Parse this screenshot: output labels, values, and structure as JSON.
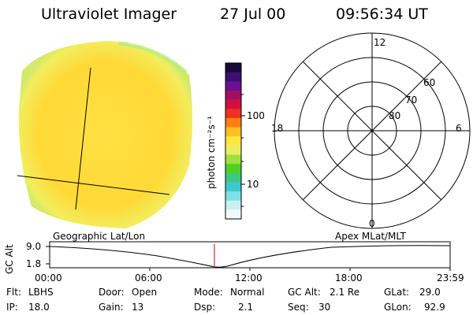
{
  "header": {
    "instrument": "Ultraviolet Imager",
    "date": "27 Jul 00",
    "time": "09:56:34 UT"
  },
  "colorbar": {
    "unit_label": "photon cm⁻²s⁻¹",
    "tick_100": "100",
    "tick_10": "10",
    "colors_top_to_bottom": [
      "#1a0a3a",
      "#3a1070",
      "#6a1090",
      "#a01060",
      "#d01040",
      "#f03020",
      "#ff8010",
      "#ffc020",
      "#ffe840",
      "#e8f060",
      "#a0e040",
      "#50d020",
      "#40c880",
      "#40c8d0",
      "#80e0e8",
      "#c8f0f0",
      "#f0fafa"
    ]
  },
  "polar_grid": {
    "mlt_labels": {
      "top": "12",
      "left": "18",
      "right": "6",
      "bottom": "0"
    },
    "lat_labels": [
      "60",
      "70",
      "80"
    ]
  },
  "altitude_strip": {
    "left_title": "Geographic Lat/Lon",
    "right_title": "Apex MLat/MLT",
    "axis_name": "GC Alt",
    "y_max": "9.0",
    "y_min": "1.8",
    "time_ticks": [
      "00:00",
      "06:00",
      "12:00",
      "18:00",
      "23:59"
    ],
    "marker_color": "#cc0000"
  },
  "status": {
    "flt_label": "Flt:",
    "flt_value": "LBHS",
    "ip_label": "IP:",
    "ip_value": "18.0",
    "door_label": "Door:",
    "door_value": "Open",
    "gain_label": "Gain:",
    "gain_value": "13",
    "mode_label": "Mode:",
    "mode_value": "Normal",
    "dsp_label": "Dsp:",
    "dsp_value": "2.1",
    "gcalt_label": "GC Alt:",
    "gcalt_value": "2.1 Re",
    "seq_label": "Seq:",
    "seq_value": "30",
    "glat_label": "GLat:",
    "glat_value": "29.0",
    "glon_label": "GLon:",
    "glon_value": "92.9"
  }
}
